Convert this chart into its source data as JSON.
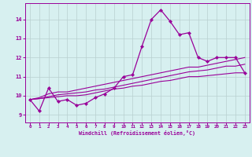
{
  "xlabel": "Windchill (Refroidissement éolien,°C)",
  "bg_color": "#d7f0f0",
  "line_color": "#990099",
  "grid_color": "#b8d0d0",
  "x_ticks": [
    0,
    1,
    2,
    3,
    4,
    5,
    6,
    7,
    8,
    9,
    10,
    11,
    12,
    13,
    14,
    15,
    16,
    17,
    18,
    19,
    20,
    21,
    22,
    23
  ],
  "y_ticks": [
    9,
    10,
    11,
    12,
    13,
    14
  ],
  "ylim": [
    8.6,
    14.85
  ],
  "xlim": [
    -0.5,
    23.5
  ],
  "series": [
    [
      9.8,
      9.2,
      10.4,
      9.7,
      9.8,
      9.5,
      9.6,
      9.9,
      10.1,
      10.4,
      11.0,
      11.1,
      12.6,
      14.0,
      14.5,
      13.9,
      13.2,
      13.3,
      12.0,
      11.8,
      12.0,
      12.0,
      12.0,
      11.2
    ],
    [
      9.8,
      9.9,
      10.1,
      10.2,
      10.2,
      10.3,
      10.4,
      10.5,
      10.6,
      10.7,
      10.8,
      10.9,
      11.0,
      11.1,
      11.2,
      11.3,
      11.4,
      11.5,
      11.5,
      11.6,
      11.7,
      11.8,
      11.9,
      12.0
    ],
    [
      9.8,
      9.85,
      9.95,
      10.05,
      10.1,
      10.15,
      10.2,
      10.3,
      10.35,
      10.45,
      10.55,
      10.65,
      10.75,
      10.85,
      10.95,
      11.05,
      11.15,
      11.25,
      11.3,
      11.35,
      11.45,
      11.55,
      11.55,
      11.65
    ],
    [
      9.8,
      9.85,
      9.9,
      9.95,
      10.0,
      10.0,
      10.05,
      10.15,
      10.25,
      10.35,
      10.4,
      10.5,
      10.55,
      10.65,
      10.75,
      10.8,
      10.9,
      11.0,
      11.0,
      11.05,
      11.1,
      11.15,
      11.2,
      11.2
    ]
  ]
}
